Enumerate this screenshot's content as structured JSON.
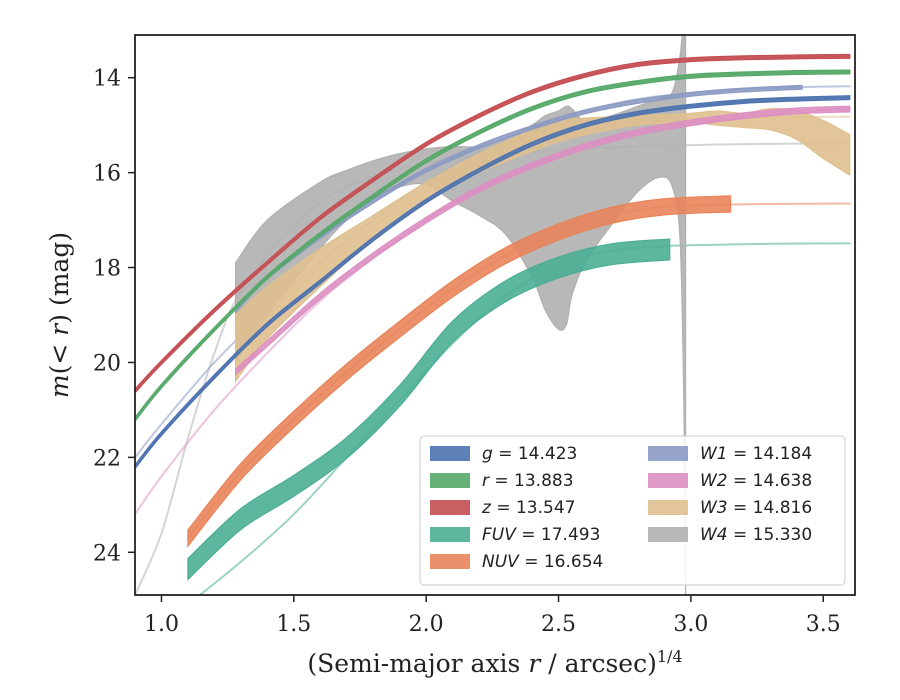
{
  "chart_data": {
    "type": "line",
    "xlabel": "(Semi-major axis r / arcsec)^1/4",
    "ylabel": "m(< r) (mag)",
    "xlim": [
      0.9,
      3.62
    ],
    "ylim": [
      24.9,
      13.1
    ],
    "y_inverted": true,
    "grid": false,
    "legend_position": "lower-right",
    "x_ticks": [
      1.0,
      1.5,
      2.0,
      2.5,
      3.0,
      3.5
    ],
    "x_tick_labels": [
      "1.0",
      "1.5",
      "2.0",
      "2.5",
      "3.0",
      "3.5"
    ],
    "y_ticks": [
      14,
      16,
      18,
      20,
      22,
      24
    ],
    "y_tick_labels": [
      "14",
      "16",
      "18",
      "20",
      "22",
      "24"
    ],
    "series": [
      {
        "name": "g",
        "legend": "g = 14.423",
        "color": "#4c72b0",
        "band_halfwidth": 0.04,
        "band_x": [
          0.9,
          1.0,
          1.2,
          1.4,
          1.6,
          1.8,
          2.0,
          2.2,
          2.4,
          2.6,
          2.8,
          3.0,
          3.2,
          3.4,
          3.6
        ],
        "band_y": [
          22.2,
          21.5,
          20.3,
          19.2,
          18.3,
          17.4,
          16.6,
          15.95,
          15.4,
          15.0,
          14.75,
          14.6,
          14.5,
          14.45,
          14.42
        ],
        "model_x": [
          0.9,
          1.0,
          1.2,
          1.4,
          1.6,
          1.8,
          2.0,
          2.2,
          2.4,
          2.6,
          2.8,
          3.0,
          3.2,
          3.4,
          3.6
        ],
        "model_y": [
          22.2,
          21.5,
          20.3,
          19.2,
          18.3,
          17.4,
          16.6,
          15.95,
          15.4,
          15.0,
          14.75,
          14.6,
          14.5,
          14.45,
          14.42
        ]
      },
      {
        "name": "r",
        "legend": "r = 13.883",
        "color": "#55a868",
        "band_halfwidth": 0.04,
        "band_x": [
          0.9,
          1.0,
          1.2,
          1.4,
          1.6,
          1.8,
          2.0,
          2.2,
          2.4,
          2.6,
          2.8,
          3.0,
          3.2,
          3.4,
          3.6
        ],
        "band_y": [
          21.2,
          20.5,
          19.3,
          18.2,
          17.3,
          16.5,
          15.75,
          15.15,
          14.65,
          14.3,
          14.1,
          13.97,
          13.92,
          13.89,
          13.88
        ],
        "model_x": [
          0.9,
          1.0,
          1.2,
          1.4,
          1.6,
          1.8,
          2.0,
          2.2,
          2.4,
          2.6,
          2.8,
          3.0,
          3.2,
          3.4,
          3.6
        ],
        "model_y": [
          21.2,
          20.5,
          19.3,
          18.2,
          17.3,
          16.5,
          15.75,
          15.15,
          14.65,
          14.3,
          14.1,
          13.97,
          13.92,
          13.89,
          13.88
        ]
      },
      {
        "name": "z",
        "legend": "z = 13.547",
        "color": "#c44e52",
        "band_halfwidth": 0.04,
        "band_x": [
          0.9,
          1.0,
          1.2,
          1.4,
          1.6,
          1.8,
          2.0,
          2.2,
          2.4,
          2.6,
          2.8,
          3.0,
          3.2,
          3.4,
          3.6
        ],
        "band_y": [
          20.6,
          20.0,
          18.9,
          17.9,
          16.95,
          16.15,
          15.4,
          14.8,
          14.3,
          13.95,
          13.72,
          13.62,
          13.58,
          13.56,
          13.55
        ],
        "model_x": [
          0.9,
          1.0,
          1.2,
          1.4,
          1.6,
          1.8,
          2.0,
          2.2,
          2.4,
          2.6,
          2.8,
          3.0,
          3.2,
          3.4,
          3.6
        ],
        "model_y": [
          20.6,
          20.0,
          18.9,
          17.9,
          16.95,
          16.15,
          15.4,
          14.8,
          14.3,
          13.95,
          13.72,
          13.62,
          13.58,
          13.56,
          13.55
        ]
      },
      {
        "name": "FUV",
        "legend": "FUV = 17.493",
        "color": "#4bae94",
        "band_halfwidth": 0.22,
        "band_x": [
          1.1,
          1.3,
          1.5,
          1.7,
          1.9,
          2.1,
          2.3,
          2.5,
          2.7,
          2.92
        ],
        "band_y": [
          24.35,
          23.3,
          22.6,
          21.8,
          20.7,
          19.35,
          18.5,
          18.0,
          17.72,
          17.62
        ],
        "model_x": [
          1.1,
          1.3,
          1.5,
          1.7,
          1.9,
          2.1,
          2.3,
          2.5,
          2.7,
          2.9,
          3.1,
          3.3,
          3.6
        ],
        "model_y": [
          25.1,
          24.2,
          23.2,
          22.0,
          20.8,
          19.6,
          18.6,
          17.95,
          17.65,
          17.55,
          17.52,
          17.5,
          17.49
        ]
      },
      {
        "name": "NUV",
        "legend": "NUV = 16.654",
        "color": "#e8845a",
        "band_halfwidth": 0.17,
        "band_x": [
          1.1,
          1.3,
          1.5,
          1.7,
          1.9,
          2.1,
          2.3,
          2.5,
          2.7,
          2.9,
          3.15
        ],
        "band_y": [
          23.7,
          22.3,
          21.2,
          20.2,
          19.3,
          18.45,
          17.75,
          17.25,
          16.9,
          16.72,
          16.66
        ],
        "model_x": [
          1.1,
          1.3,
          1.5,
          1.7,
          1.9,
          2.1,
          2.3,
          2.5,
          2.7,
          2.9,
          3.1,
          3.3,
          3.6
        ],
        "model_y": [
          23.7,
          22.3,
          21.2,
          20.2,
          19.3,
          18.45,
          17.75,
          17.25,
          16.9,
          16.72,
          16.68,
          16.66,
          16.65
        ]
      },
      {
        "name": "W1",
        "legend": "W1 = 14.184",
        "color": "#8c9ac4",
        "band_halfwidth": 0.04,
        "band_x": [
          1.28,
          1.4,
          1.6,
          1.8,
          2.0,
          2.2,
          2.4,
          2.6,
          2.8,
          3.0,
          3.2,
          3.42
        ],
        "band_y": [
          18.9,
          18.2,
          17.35,
          16.6,
          15.95,
          15.45,
          15.05,
          14.72,
          14.5,
          14.35,
          14.26,
          14.2
        ],
        "model_x": [
          0.9,
          1.0,
          1.2,
          1.4,
          1.6,
          1.8,
          2.0,
          2.2,
          2.4,
          2.6,
          2.8,
          3.0,
          3.2,
          3.4,
          3.6
        ],
        "model_y": [
          22.0,
          21.3,
          20.0,
          18.9,
          17.9,
          17.0,
          16.2,
          15.55,
          15.05,
          14.7,
          14.45,
          14.32,
          14.24,
          14.2,
          14.18
        ]
      },
      {
        "name": "W2",
        "legend": "W2 = 14.638",
        "color": "#dd8fc2",
        "band_halfwidth": 0.06,
        "band_x": [
          1.28,
          1.4,
          1.6,
          1.8,
          2.0,
          2.2,
          2.4,
          2.6,
          2.8,
          3.0,
          3.2,
          3.4,
          3.6
        ],
        "band_y": [
          20.2,
          19.6,
          18.6,
          17.75,
          17.0,
          16.35,
          15.85,
          15.45,
          15.15,
          14.95,
          14.8,
          14.7,
          14.66
        ],
        "model_x": [
          0.9,
          1.0,
          1.2,
          1.4,
          1.6,
          1.8,
          2.0,
          2.2,
          2.4,
          2.6,
          2.8,
          3.0,
          3.2,
          3.4,
          3.6
        ],
        "model_y": [
          23.2,
          22.4,
          21.0,
          19.8,
          18.7,
          17.8,
          17.0,
          16.35,
          15.85,
          15.45,
          15.15,
          14.95,
          14.8,
          14.7,
          14.66
        ]
      },
      {
        "name": "W3",
        "legend": "W3 = 14.816",
        "color": "#dfc08f",
        "band_x": [
          1.28,
          1.4,
          1.6,
          1.8,
          2.0,
          2.2,
          2.4,
          2.5,
          2.6,
          2.8,
          3.0,
          3.1,
          3.2,
          3.3,
          3.4,
          3.5,
          3.6
        ],
        "band_upper": [
          19.0,
          18.4,
          17.6,
          16.9,
          16.2,
          15.6,
          15.1,
          14.9,
          14.85,
          14.8,
          14.75,
          14.7,
          14.75,
          14.65,
          14.7,
          14.9,
          15.2
        ],
        "band_lower": [
          20.4,
          19.5,
          18.4,
          17.4,
          16.6,
          16.0,
          15.55,
          15.35,
          15.2,
          15.0,
          14.95,
          15.0,
          15.05,
          15.1,
          15.3,
          15.7,
          16.05
        ],
        "model_x": [
          1.28,
          1.6,
          2.0,
          2.4,
          2.8,
          3.2,
          3.6
        ],
        "model_y": [
          19.7,
          18.0,
          16.4,
          15.3,
          14.95,
          14.85,
          14.82
        ]
      },
      {
        "name": "W4",
        "legend": "W4 = 15.330",
        "color": "#b0b0b0",
        "band_x": [
          1.28,
          1.4,
          1.6,
          1.7,
          1.8,
          1.9,
          2.0,
          2.1,
          2.2,
          2.3,
          2.4,
          2.45,
          2.5,
          2.53,
          2.55,
          2.6,
          2.7,
          2.8,
          2.88,
          2.93,
          2.96,
          2.975,
          2.98
        ],
        "band_upper": [
          17.9,
          17.0,
          16.2,
          15.95,
          15.75,
          15.6,
          15.5,
          15.45,
          15.45,
          15.3,
          15.0,
          14.8,
          14.7,
          14.6,
          14.65,
          14.9,
          14.8,
          14.6,
          14.45,
          14.3,
          13.5,
          12.5,
          12.0
        ],
        "band_lower": [
          20.0,
          19.0,
          17.6,
          17.0,
          16.55,
          16.3,
          16.25,
          16.6,
          16.9,
          17.3,
          18.2,
          18.9,
          19.3,
          19.2,
          18.6,
          17.9,
          17.1,
          16.4,
          16.1,
          16.3,
          17.5,
          21.5,
          25.0
        ],
        "model_x": [
          0.9,
          1.0,
          1.1,
          1.2,
          1.3,
          1.5,
          1.7,
          2.0,
          2.4,
          2.8,
          3.2,
          3.6
        ],
        "model_y": [
          24.9,
          23.6,
          21.6,
          19.8,
          18.5,
          17.1,
          16.3,
          15.8,
          15.55,
          15.45,
          15.4,
          15.38
        ]
      }
    ]
  }
}
